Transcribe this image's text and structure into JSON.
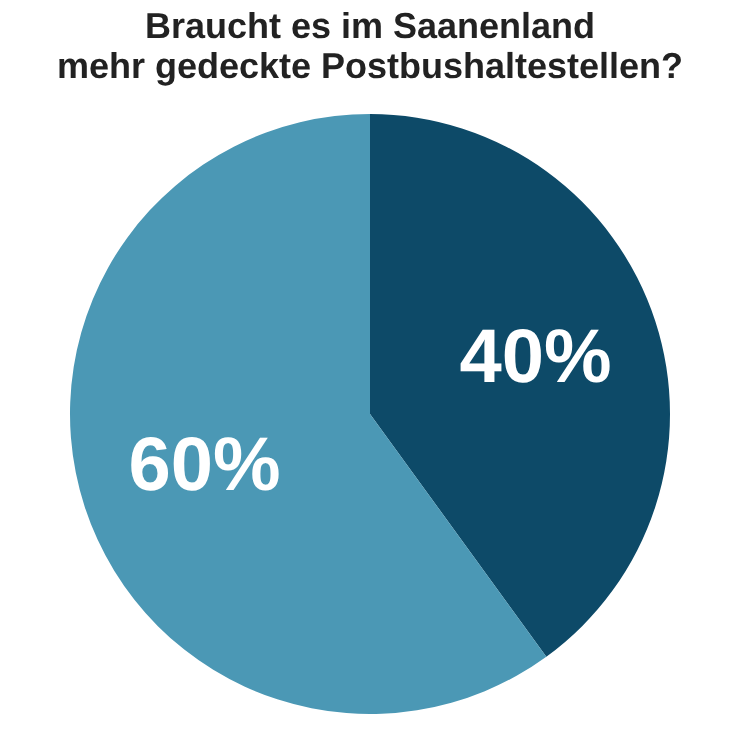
{
  "chart_data": {
    "type": "pie",
    "title": [
      "Braucht es im Saanenland",
      "mehr gedeckte Postbushaltestellen?"
    ],
    "categories": [
      null,
      null
    ],
    "values": [
      40,
      60
    ],
    "colors": [
      "#0d4a68",
      "#4b98b5"
    ],
    "value_labels": [
      "40%",
      "60%"
    ],
    "legend": false
  }
}
